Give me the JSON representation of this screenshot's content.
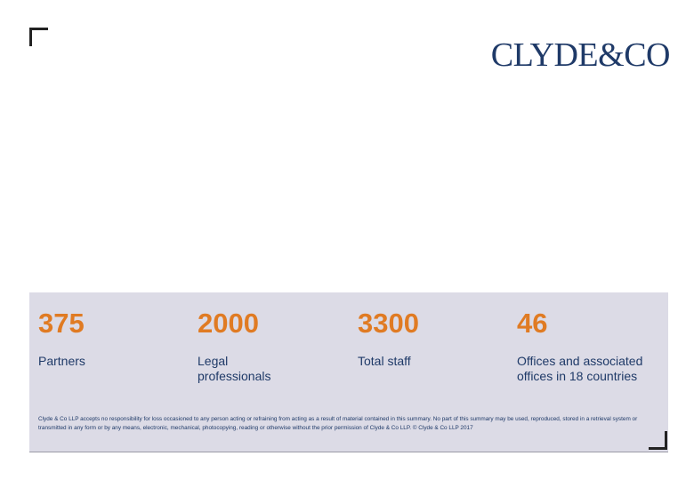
{
  "logo": {
    "text": "CLYDE&CO",
    "color": "#1f3a68"
  },
  "stats": [
    {
      "value": "375",
      "label": "Partners"
    },
    {
      "value": "2000",
      "label": "Legal professionals"
    },
    {
      "value": "3300",
      "label": "Total staff"
    },
    {
      "value": "46",
      "label": "Offices and associated offices in 18 countries"
    }
  ],
  "disclaimer": "Clyde & Co LLP accepts no responsibility for loss occasioned to any person acting or refraining from acting as a result of material contained in this summary. No part of this summary may be used, reproduced, stored in a retrieval system or transmitted in any form or by any means, electronic, mechanical, photocopying, reading or otherwise without the prior permission of Clyde & Co LLP. © Clyde & Co LLP 2017",
  "colors": {
    "accent": "#e07b23",
    "brand": "#1f3a68",
    "panel": "#dcdbe6"
  }
}
